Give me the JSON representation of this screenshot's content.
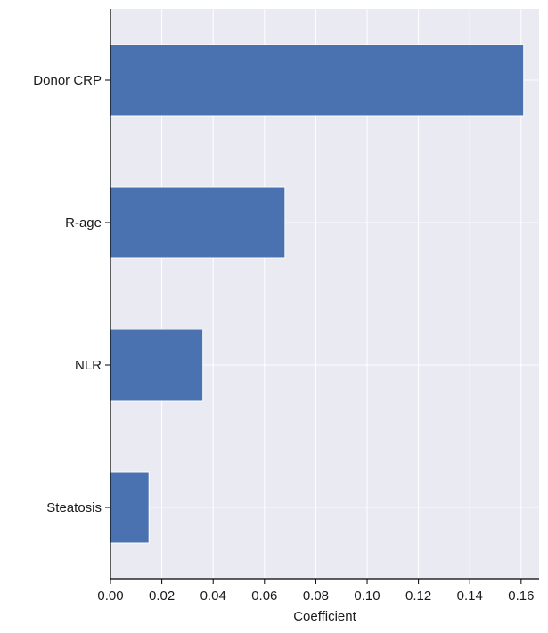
{
  "chart_data": {
    "type": "bar",
    "orientation": "horizontal",
    "categories": [
      "Donor CRP",
      "R-age",
      "NLR",
      "Steatosis"
    ],
    "values": [
      0.161,
      0.068,
      0.036,
      0.015
    ],
    "xlabel": "Coefficient",
    "ylabel": "",
    "title": "",
    "xlim": [
      0,
      0.167
    ],
    "xticks": [
      0.0,
      0.02,
      0.04,
      0.06,
      0.08,
      0.1,
      0.12,
      0.14,
      0.16
    ],
    "xtick_labels": [
      "0.00",
      "0.02",
      "0.04",
      "0.06",
      "0.08",
      "0.10",
      "0.12",
      "0.14",
      "0.16"
    ],
    "grid": true,
    "legend": "none",
    "colors": {
      "bar": "#4a72b0",
      "plot_background": "#e9eaf2",
      "grid": "#ffffff",
      "axis": "#000000"
    }
  }
}
